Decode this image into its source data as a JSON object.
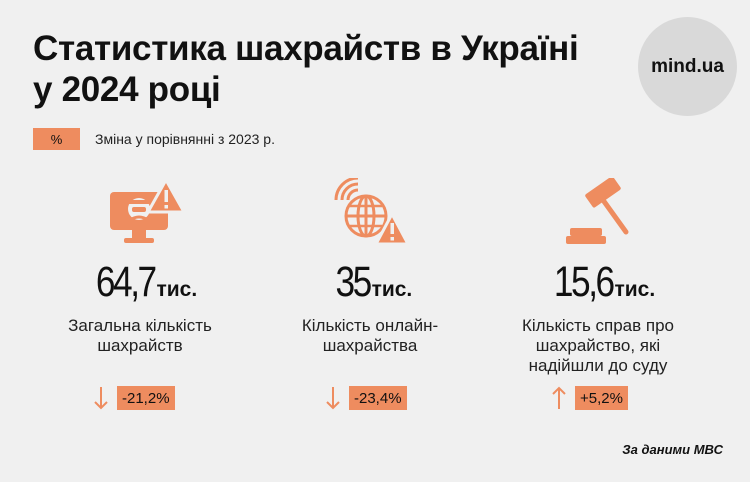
{
  "title_line1": "Статистика шахрайств в Україні",
  "title_line2": "у 2024 році",
  "logo": "mind.ua",
  "legend": {
    "symbol": "%",
    "text": "Зміна у порівнянні з 2023 р."
  },
  "accent_color": "#ee8c5f",
  "stats": [
    {
      "icon": "hacker-computer-warning-icon",
      "value": "64,7",
      "unit": "тис.",
      "label_line1": "Загальна кількість",
      "label_line2": "шахрайств",
      "label_line3": "",
      "direction": "down",
      "change": "-21,2%"
    },
    {
      "icon": "globe-wifi-warning-icon",
      "value": "35",
      "unit": "тис.",
      "label_line1": "Кількість онлайн-",
      "label_line2": "шахрайства",
      "label_line3": "",
      "direction": "down",
      "change": "-23,4%"
    },
    {
      "icon": "gavel-icon",
      "value": "15,6",
      "unit": "тис.",
      "label_line1": "Кількість справ про",
      "label_line2": "шахрайство, які",
      "label_line3": "надійшли до суду",
      "direction": "up",
      "change": "+5,2%"
    }
  ],
  "source": "За даними МВС"
}
